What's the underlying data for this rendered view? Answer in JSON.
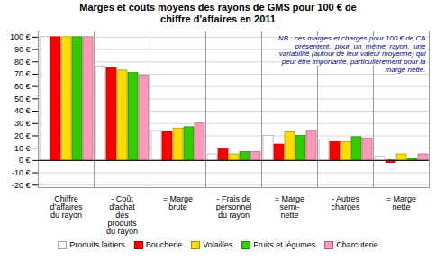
{
  "chart_data": {
    "type": "bar",
    "title": "Marges et coûts moyens des rayons de GMS pour 100 € de\nchiffre d'affaires en 2011",
    "categories": [
      "Chiffre\nd'affaires\ndu rayon",
      "- Coût\nd'achat\ndes\nproduits\ndu rayon",
      "= Marge\nbrute",
      "- Frais de\npersonnel\ndu rayon",
      "= Marge\nsemi-\nnette",
      "- Autres\ncharges",
      "= Marge\nnette"
    ],
    "series": [
      {
        "name": "Produits laitiers",
        "color": "#FFFFFF",
        "values": [
          100,
          76,
          24,
          5,
          20,
          17,
          3
        ]
      },
      {
        "name": "Boucherie",
        "color": "#FF0000",
        "values": [
          100,
          75,
          23,
          9,
          13,
          15,
          -2
        ]
      },
      {
        "name": "Volailles",
        "color": "#FFDD00",
        "values": [
          100,
          73,
          26,
          5,
          23,
          15,
          5
        ]
      },
      {
        "name": "Fruits et légumes",
        "color": "#33CC00",
        "values": [
          100,
          71,
          27,
          7,
          20,
          19,
          1
        ]
      },
      {
        "name": "Charcuterie",
        "color": "#FF99BB",
        "values": [
          100,
          69,
          30,
          7,
          24,
          18,
          5
        ]
      }
    ],
    "ylim": [
      -22,
      105
    ],
    "yticks": [
      {
        "value": -20,
        "label": "-20 €"
      },
      {
        "value": -10,
        "label": "-10 €"
      },
      {
        "value": 0,
        "label": "0 €"
      },
      {
        "value": 10,
        "label": "10 €"
      },
      {
        "value": 20,
        "label": "20 €"
      },
      {
        "value": 30,
        "label": "30 €"
      },
      {
        "value": 40,
        "label": "40 €"
      },
      {
        "value": 50,
        "label": "50 €"
      },
      {
        "value": 60,
        "label": "60 €"
      },
      {
        "value": 70,
        "label": "70 €"
      },
      {
        "value": 80,
        "label": "80 €"
      },
      {
        "value": 90,
        "label": "90 €"
      },
      {
        "value": 100,
        "label": "100 €"
      }
    ],
    "grid": true,
    "legend": "bottom",
    "annotations": [
      "NB : ces marges et charges pour 100 € de CA\nprésentent,  pour  un  même  rayon,  une\nvariabilité (autour de leur valeur moyenne) qui\npeut être importante, particulièrement pour la\nmarge nette."
    ]
  }
}
